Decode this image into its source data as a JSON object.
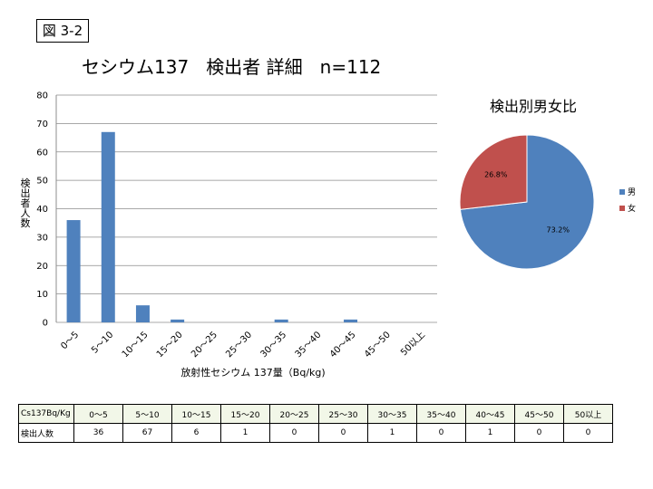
{
  "figure_label": "図 3-2",
  "title": "セシウム137   検出者 詳細   n=112",
  "chart_data": [
    {
      "type": "bar",
      "categories": [
        "0～5",
        "5～10",
        "10～15",
        "15～20",
        "20～25",
        "25～30",
        "30～35",
        "35～40",
        "40～45",
        "45～50",
        "50以上"
      ],
      "values": [
        36,
        67,
        6,
        1,
        0,
        0,
        1,
        0,
        1,
        0,
        0
      ],
      "ylabel": "検出者人数",
      "xlabel": "放射性セシウム 137量（Bq/kg)",
      "ylim": [
        0,
        80
      ],
      "yticks": [
        0,
        10,
        20,
        30,
        40,
        50,
        60,
        70,
        80
      ],
      "grid": true,
      "color": "#4f81bd"
    },
    {
      "type": "pie",
      "title": "検出別男女比",
      "labels": [
        "男",
        "女"
      ],
      "values": [
        73.2,
        26.8
      ],
      "data_labels": [
        "73.2%",
        "26.8%"
      ],
      "colors": [
        "#4f81bd",
        "#c0504d"
      ],
      "legend": "right"
    }
  ],
  "table": {
    "header_label": "Cs137Bq/Kg",
    "row_label": "検出人数",
    "categories": [
      "0～5",
      "5～10",
      "10～15",
      "15～20",
      "20～25",
      "25～30",
      "30～35",
      "35～40",
      "40～45",
      "45～50",
      "50以上"
    ],
    "counts": [
      "36",
      "67",
      "6",
      "1",
      "0",
      "0",
      "1",
      "0",
      "1",
      "0",
      "0"
    ]
  }
}
